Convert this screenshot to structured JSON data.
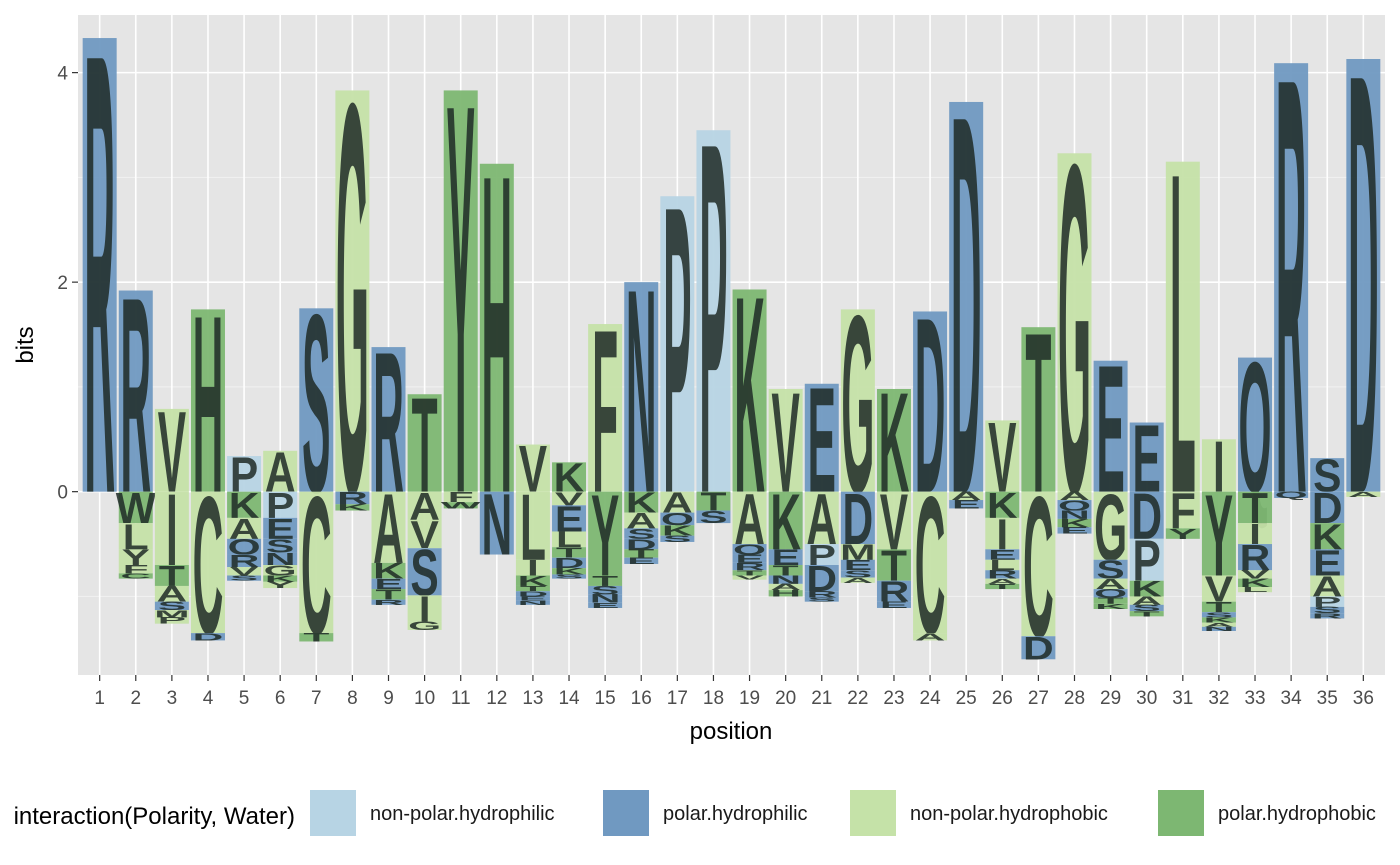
{
  "chart_data": {
    "type": "bar",
    "title": "",
    "xlabel": "position",
    "ylabel": "bits",
    "ylim": [
      -1.75,
      4.55
    ],
    "y_ticks": [
      0,
      2,
      4
    ],
    "grid": true,
    "legend_placement": "bottom",
    "legend": {
      "title": "interaction(Polarity, Water)",
      "entries": [
        "non-polar.hydrophilic",
        "polar.hydrophilic",
        "non-polar.hydrophobic",
        "polar.hydrophobic"
      ]
    },
    "colors": {
      "non-polar.hydrophilic": "#b7d4e4",
      "polar.hydrophilic": "#7099c1",
      "non-polar.hydrophobic": "#c5e2a8",
      "polar.hydrophobic": "#7db772",
      "panel_background": "#e5e5e5",
      "grid": "#ffffff"
    },
    "positions": [
      {
        "x": 1,
        "pos": [
          [
            "R",
            4.33,
            1
          ]
        ],
        "neg": []
      },
      {
        "x": 2,
        "pos": [
          [
            "R",
            1.92,
            1
          ]
        ],
        "neg": [
          [
            "W",
            0.3,
            3
          ],
          [
            "L",
            0.25,
            2
          ],
          [
            "Y",
            0.15,
            2
          ],
          [
            "F",
            0.08,
            2
          ],
          [
            "C",
            0.05,
            3
          ]
        ]
      },
      {
        "x": 3,
        "pos": [
          [
            "V",
            0.79,
            2
          ]
        ],
        "neg": [
          [
            "I",
            0.7,
            2
          ],
          [
            "T",
            0.2,
            3
          ],
          [
            "A",
            0.15,
            2
          ],
          [
            "S",
            0.08,
            1
          ],
          [
            "M",
            0.07,
            2
          ],
          [
            "P",
            0.06,
            2
          ]
        ]
      },
      {
        "x": 4,
        "pos": [
          [
            "H",
            1.74,
            3
          ]
        ],
        "neg": [
          [
            "C",
            1.35,
            2
          ],
          [
            "D",
            0.07,
            1
          ]
        ]
      },
      {
        "x": 5,
        "pos": [
          [
            "P",
            0.34,
            0
          ]
        ],
        "neg": [
          [
            "K",
            0.25,
            3
          ],
          [
            "A",
            0.2,
            2
          ],
          [
            "Q",
            0.15,
            1
          ],
          [
            "R",
            0.12,
            1
          ],
          [
            "V",
            0.08,
            2
          ],
          [
            "S",
            0.05,
            1
          ]
        ]
      },
      {
        "x": 6,
        "pos": [
          [
            "A",
            0.39,
            2
          ]
        ],
        "neg": [
          [
            "P",
            0.25,
            0
          ],
          [
            "E",
            0.2,
            1
          ],
          [
            "S",
            0.13,
            1
          ],
          [
            "N",
            0.12,
            1
          ],
          [
            "G",
            0.1,
            2
          ],
          [
            "K",
            0.06,
            3
          ],
          [
            "Y",
            0.06,
            2
          ]
        ]
      },
      {
        "x": 7,
        "pos": [
          [
            "S",
            1.75,
            1
          ]
        ],
        "neg": [
          [
            "C",
            1.35,
            2
          ],
          [
            "T",
            0.08,
            3
          ]
        ]
      },
      {
        "x": 8,
        "pos": [
          [
            "G",
            3.83,
            2
          ]
        ],
        "neg": [
          [
            "R",
            0.12,
            1
          ],
          [
            "K",
            0.06,
            3
          ]
        ]
      },
      {
        "x": 9,
        "pos": [
          [
            "R",
            1.38,
            1
          ]
        ],
        "neg": [
          [
            "A",
            0.68,
            2
          ],
          [
            "K",
            0.15,
            3
          ],
          [
            "E",
            0.1,
            1
          ],
          [
            "T",
            0.1,
            3
          ],
          [
            "R",
            0.05,
            1
          ]
        ]
      },
      {
        "x": 10,
        "pos": [
          [
            "T",
            0.93,
            3
          ]
        ],
        "neg": [
          [
            "A",
            0.27,
            2
          ],
          [
            "V",
            0.27,
            2
          ],
          [
            "S",
            0.45,
            1
          ],
          [
            "I",
            0.25,
            2
          ],
          [
            "G",
            0.08,
            2
          ]
        ]
      },
      {
        "x": 11,
        "pos": [
          [
            "Y",
            3.83,
            3
          ]
        ],
        "neg": [
          [
            "F",
            0.1,
            2
          ],
          [
            "W",
            0.06,
            3
          ]
        ]
      },
      {
        "x": 12,
        "pos": [
          [
            "H",
            3.13,
            3
          ]
        ],
        "neg": [
          [
            "N",
            0.6,
            1
          ]
        ]
      },
      {
        "x": 13,
        "pos": [
          [
            "V",
            0.45,
            2
          ]
        ],
        "neg": [
          [
            "L",
            0.65,
            2
          ],
          [
            "I",
            0.15,
            2
          ],
          [
            "K",
            0.1,
            3
          ],
          [
            "T",
            0.05,
            3
          ],
          [
            "D",
            0.05,
            1
          ],
          [
            "E",
            0.04,
            1
          ],
          [
            "N",
            0.04,
            1
          ]
        ]
      },
      {
        "x": 14,
        "pos": [
          [
            "K",
            0.28,
            3
          ]
        ],
        "neg": [
          [
            "V",
            0.13,
            2
          ],
          [
            "E",
            0.25,
            1
          ],
          [
            "L",
            0.15,
            2
          ],
          [
            "T",
            0.1,
            3
          ],
          [
            "D",
            0.1,
            1
          ],
          [
            "K",
            0.06,
            3
          ],
          [
            "S",
            0.04,
            1
          ]
        ]
      },
      {
        "x": 15,
        "pos": [
          [
            "F",
            1.6,
            2
          ]
        ],
        "neg": [
          [
            "Y",
            0.8,
            3
          ],
          [
            "T",
            0.1,
            3
          ],
          [
            "S",
            0.08,
            1
          ],
          [
            "N",
            0.08,
            1
          ],
          [
            "E",
            0.05,
            1
          ]
        ]
      },
      {
        "x": 16,
        "pos": [
          [
            "N",
            2.0,
            1
          ]
        ],
        "neg": [
          [
            "K",
            0.2,
            3
          ],
          [
            "A",
            0.15,
            2
          ],
          [
            "S",
            0.1,
            1
          ],
          [
            "D",
            0.1,
            1
          ],
          [
            "T",
            0.08,
            3
          ],
          [
            "E",
            0.06,
            1
          ]
        ]
      },
      {
        "x": 17,
        "pos": [
          [
            "P",
            2.82,
            0
          ]
        ],
        "neg": [
          [
            "A",
            0.2,
            2
          ],
          [
            "Q",
            0.12,
            1
          ],
          [
            "K",
            0.1,
            3
          ],
          [
            "S",
            0.06,
            1
          ]
        ]
      },
      {
        "x": 18,
        "pos": [
          [
            "P",
            3.45,
            0
          ]
        ],
        "neg": [
          [
            "T",
            0.18,
            3
          ],
          [
            "S",
            0.12,
            1
          ]
        ]
      },
      {
        "x": 19,
        "pos": [
          [
            "K",
            1.93,
            3
          ]
        ],
        "neg": [
          [
            "A",
            0.5,
            2
          ],
          [
            "Q",
            0.1,
            1
          ],
          [
            "E",
            0.08,
            1
          ],
          [
            "R",
            0.07,
            1
          ],
          [
            "T",
            0.05,
            3
          ],
          [
            "V",
            0.04,
            2
          ]
        ]
      },
      {
        "x": 20,
        "pos": [
          [
            "V",
            0.98,
            2
          ]
        ],
        "neg": [
          [
            "K",
            0.55,
            3
          ],
          [
            "E",
            0.15,
            1
          ],
          [
            "T",
            0.1,
            3
          ],
          [
            "N",
            0.08,
            1
          ],
          [
            "A",
            0.06,
            2
          ],
          [
            "H",
            0.06,
            3
          ]
        ]
      },
      {
        "x": 21,
        "pos": [
          [
            "E",
            1.03,
            1
          ]
        ],
        "neg": [
          [
            "A",
            0.5,
            2
          ],
          [
            "P",
            0.2,
            0
          ],
          [
            "D",
            0.25,
            1
          ],
          [
            "R",
            0.06,
            1
          ],
          [
            "S",
            0.04,
            1
          ]
        ]
      },
      {
        "x": 22,
        "pos": [
          [
            "G",
            1.74,
            2
          ]
        ],
        "neg": [
          [
            "D",
            0.5,
            1
          ],
          [
            "M",
            0.15,
            2
          ],
          [
            "E",
            0.1,
            1
          ],
          [
            "S",
            0.07,
            1
          ],
          [
            "A",
            0.05,
            2
          ]
        ]
      },
      {
        "x": 23,
        "pos": [
          [
            "K",
            0.98,
            3
          ]
        ],
        "neg": [
          [
            "V",
            0.55,
            2
          ],
          [
            "T",
            0.3,
            3
          ],
          [
            "R",
            0.2,
            1
          ],
          [
            "E",
            0.06,
            1
          ]
        ]
      },
      {
        "x": 24,
        "pos": [
          [
            "D",
            1.72,
            1
          ]
        ],
        "neg": [
          [
            "C",
            1.35,
            2
          ],
          [
            "A",
            0.07,
            2
          ]
        ]
      },
      {
        "x": 25,
        "pos": [
          [
            "D",
            3.72,
            1
          ]
        ],
        "neg": [
          [
            "A",
            0.08,
            2
          ],
          [
            "E",
            0.08,
            1
          ]
        ]
      },
      {
        "x": 26,
        "pos": [
          [
            "V",
            0.68,
            2
          ]
        ],
        "neg": [
          [
            "K",
            0.25,
            3
          ],
          [
            "I",
            0.3,
            2
          ],
          [
            "E",
            0.1,
            1
          ],
          [
            "L",
            0.1,
            2
          ],
          [
            "R",
            0.08,
            1
          ],
          [
            "A",
            0.05,
            2
          ],
          [
            "T",
            0.05,
            3
          ]
        ]
      },
      {
        "x": 27,
        "pos": [
          [
            "T",
            1.57,
            3
          ]
        ],
        "neg": [
          [
            "C",
            1.38,
            2
          ],
          [
            "D",
            0.22,
            1
          ]
        ]
      },
      {
        "x": 28,
        "pos": [
          [
            "G",
            3.23,
            2
          ]
        ],
        "neg": [
          [
            "A",
            0.08,
            2
          ],
          [
            "Q",
            0.1,
            1
          ],
          [
            "N",
            0.08,
            1
          ],
          [
            "K",
            0.08,
            3
          ],
          [
            "E",
            0.06,
            1
          ]
        ]
      },
      {
        "x": 29,
        "pos": [
          [
            "E",
            1.25,
            1
          ]
        ],
        "neg": [
          [
            "G",
            0.65,
            2
          ],
          [
            "S",
            0.18,
            1
          ],
          [
            "A",
            0.1,
            2
          ],
          [
            "Q",
            0.08,
            1
          ],
          [
            "T",
            0.06,
            3
          ],
          [
            "K",
            0.05,
            3
          ]
        ]
      },
      {
        "x": 30,
        "pos": [
          [
            "E",
            0.66,
            1
          ]
        ],
        "neg": [
          [
            "D",
            0.45,
            1
          ],
          [
            "P",
            0.4,
            0
          ],
          [
            "K",
            0.15,
            3
          ],
          [
            "A",
            0.08,
            2
          ],
          [
            "S",
            0.06,
            1
          ],
          [
            "T",
            0.05,
            3
          ]
        ]
      },
      {
        "x": 31,
        "pos": [
          [
            "L",
            3.15,
            2
          ]
        ],
        "neg": [
          [
            "F",
            0.35,
            2
          ],
          [
            "Y",
            0.1,
            3
          ]
        ]
      },
      {
        "x": 32,
        "pos": [
          [
            "I",
            0.5,
            2
          ]
        ],
        "neg": [
          [
            "Y",
            0.8,
            3
          ],
          [
            "V",
            0.25,
            2
          ],
          [
            "T",
            0.1,
            3
          ],
          [
            "S",
            0.05,
            1
          ],
          [
            "K",
            0.05,
            3
          ],
          [
            "A",
            0.04,
            2
          ],
          [
            "N",
            0.04,
            1
          ]
        ]
      },
      {
        "x": 33,
        "pos": [
          [
            "Q",
            1.28,
            1
          ]
        ],
        "neg": [
          [
            "T",
            0.3,
            3
          ],
          [
            "I",
            0.2,
            2
          ],
          [
            "R",
            0.25,
            1
          ],
          [
            "V",
            0.08,
            2
          ],
          [
            "K",
            0.08,
            3
          ],
          [
            "L",
            0.05,
            2
          ]
        ]
      },
      {
        "x": 34,
        "pos": [
          [
            "R",
            4.09,
            1
          ]
        ],
        "neg": [
          [
            "Q",
            0.06,
            1
          ]
        ]
      },
      {
        "x": 35,
        "pos": [
          [
            "S",
            0.32,
            1
          ]
        ],
        "neg": [
          [
            "D",
            0.3,
            1
          ],
          [
            "K",
            0.25,
            3
          ],
          [
            "E",
            0.25,
            1
          ],
          [
            "A",
            0.2,
            2
          ],
          [
            "P",
            0.1,
            0
          ],
          [
            "S",
            0.06,
            1
          ],
          [
            "R",
            0.05,
            1
          ]
        ]
      },
      {
        "x": 36,
        "pos": [
          [
            "D",
            4.13,
            1
          ]
        ],
        "neg": [
          [
            "A",
            0.05,
            2
          ]
        ]
      }
    ]
  }
}
